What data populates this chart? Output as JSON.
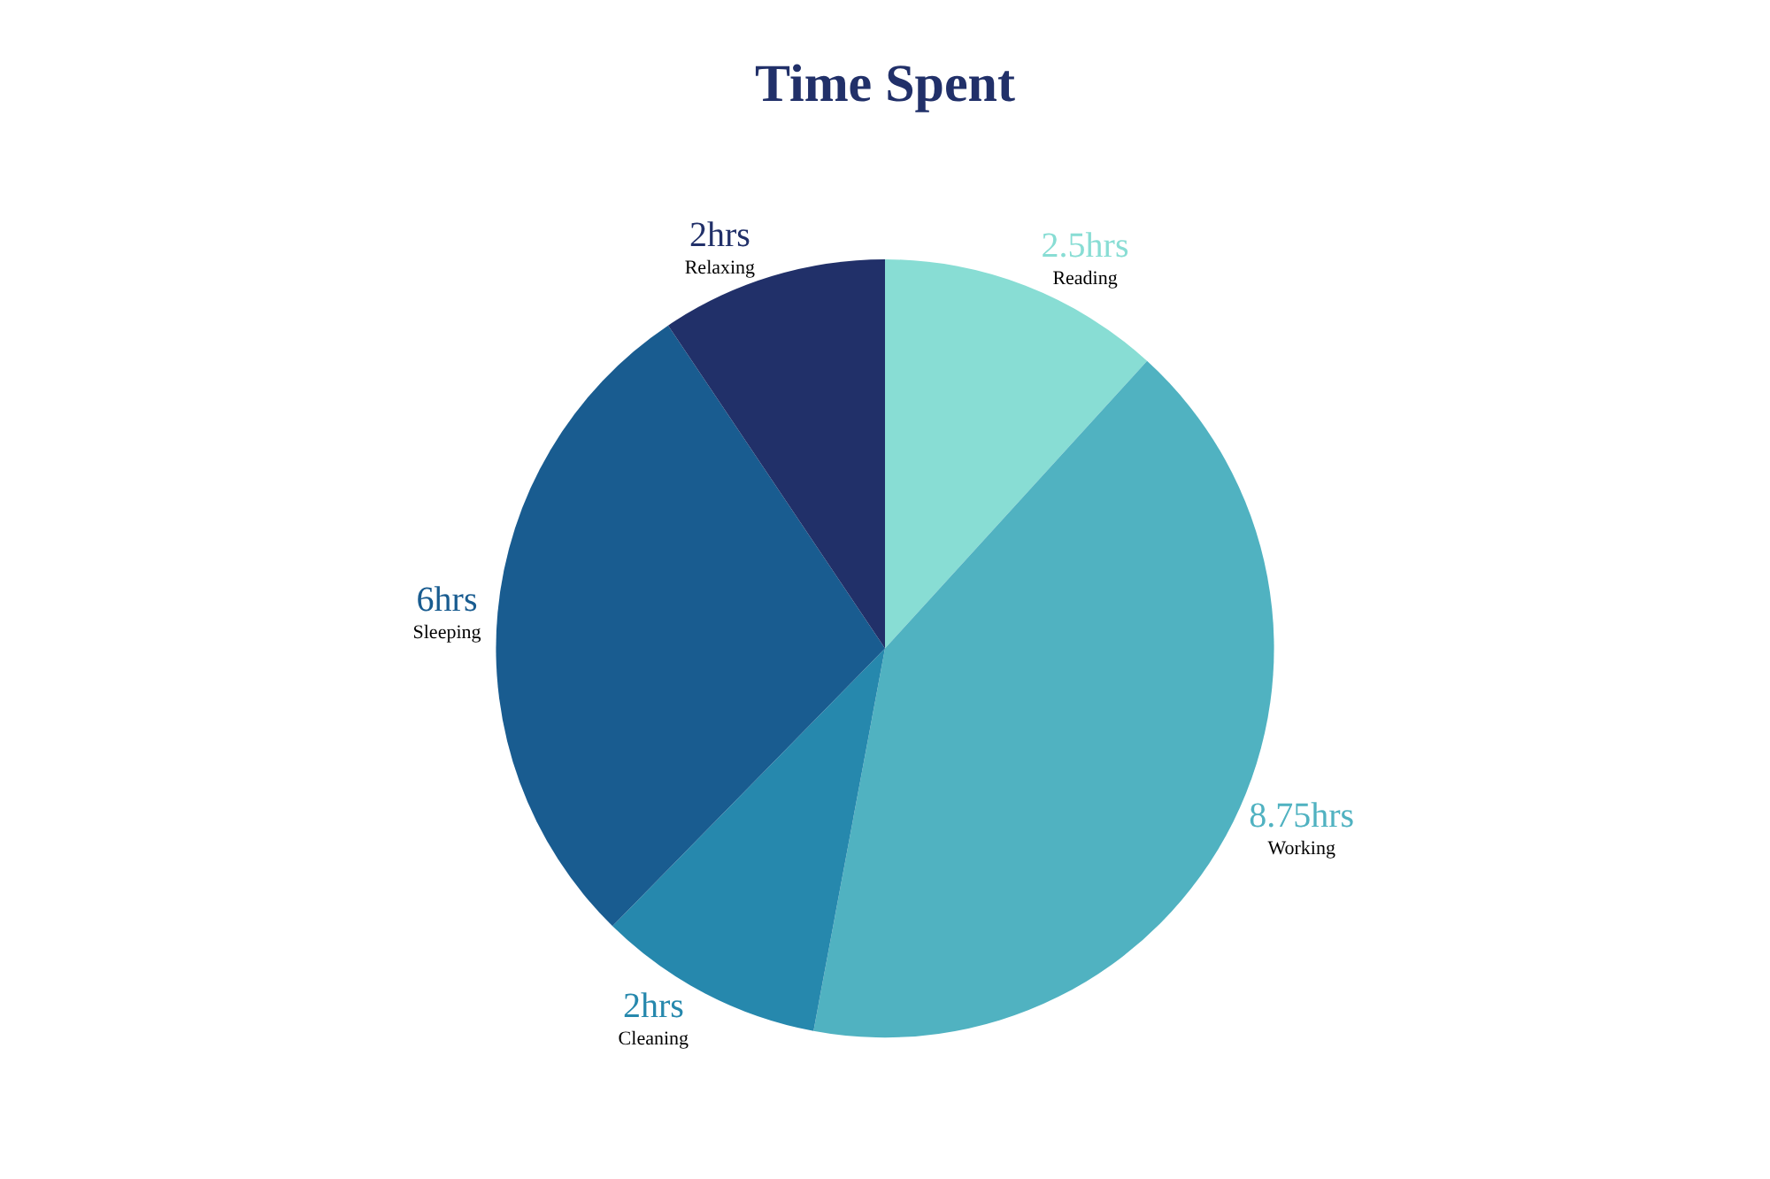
{
  "chart_data": {
    "type": "pie",
    "title": "Time Spent",
    "categories": [
      "Reading",
      "Working",
      "Cleaning",
      "Sleeping",
      "Relaxing"
    ],
    "values": [
      2.5,
      8.75,
      2,
      6,
      2
    ],
    "value_labels": [
      "2.5hrs",
      "8.75hrs",
      "2hrs",
      "6hrs",
      "2hrs"
    ],
    "colors": [
      "#88ddd4",
      "#50b2c1",
      "#2688ad",
      "#195c90",
      "#213069"
    ],
    "legend": false
  }
}
